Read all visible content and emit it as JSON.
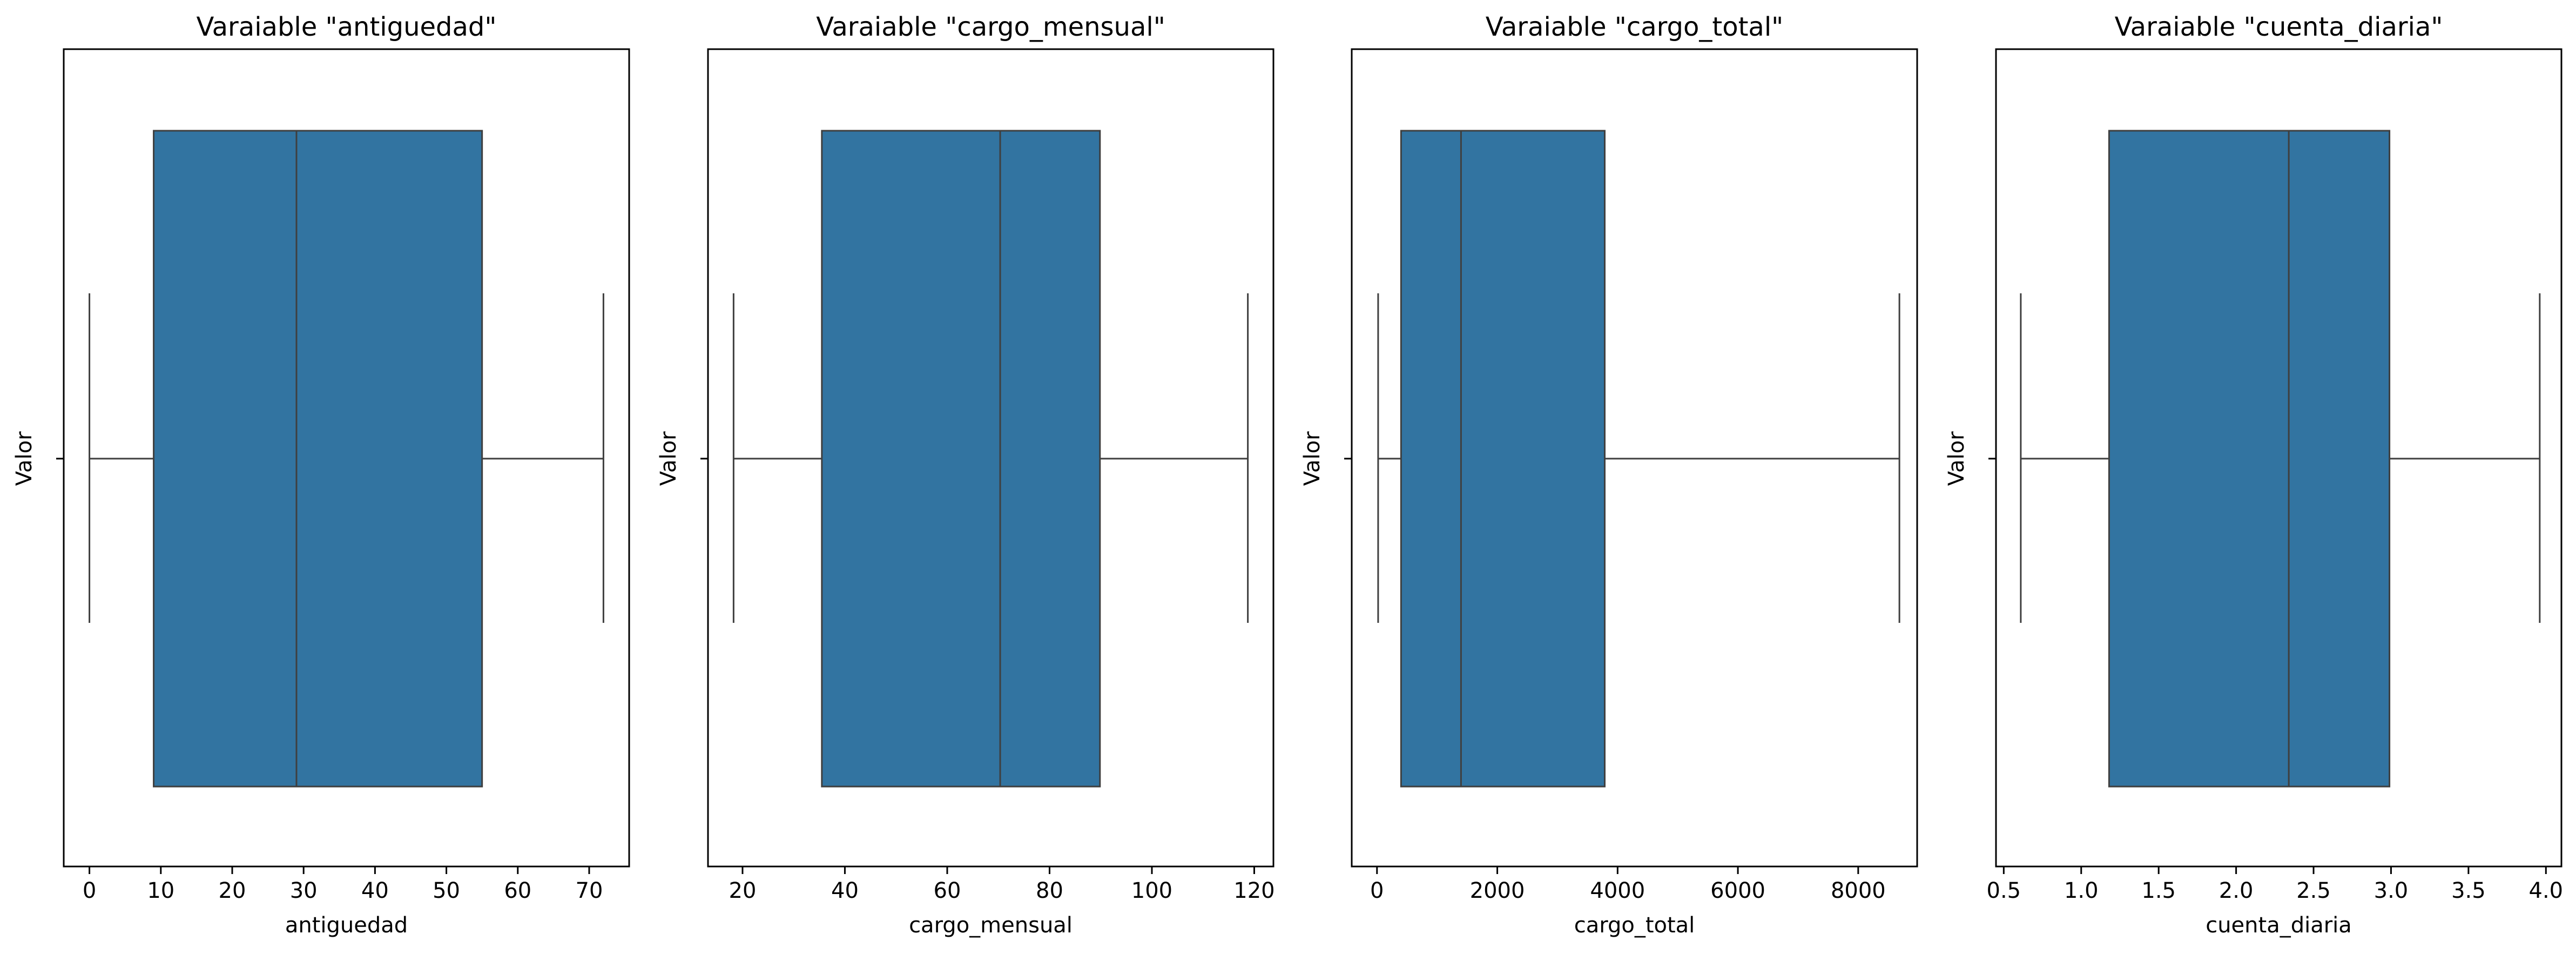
{
  "chart_data": [
    {
      "type": "boxplot",
      "title": "Varaiable \"antiguedad\"",
      "xlabel": "antiguedad",
      "ylabel": "Valor",
      "xlim": [
        -3.6,
        75.6
      ],
      "xticks": [
        0,
        10,
        20,
        30,
        40,
        50,
        60,
        70
      ],
      "tick_labels": [
        "0",
        "10",
        "20",
        "30",
        "40",
        "50",
        "60",
        "70"
      ],
      "stats": {
        "whisker_low": 0,
        "q1": 9,
        "median": 29,
        "q3": 55,
        "whisker_high": 72
      },
      "box_color": "#3274a1",
      "grid": false
    },
    {
      "type": "boxplot",
      "title": "Varaiable \"cargo_mensual\"",
      "xlabel": "cargo_mensual",
      "ylabel": "Valor",
      "xlim": [
        13.25,
        123.75
      ],
      "xticks": [
        20,
        40,
        60,
        80,
        100,
        120
      ],
      "tick_labels": [
        "20",
        "40",
        "60",
        "80",
        "100",
        "120"
      ],
      "stats": {
        "whisker_low": 18.25,
        "q1": 35.5,
        "median": 70.35,
        "q3": 89.85,
        "whisker_high": 118.75
      },
      "box_color": "#3274a1",
      "grid": false
    },
    {
      "type": "boxplot",
      "title": "Varaiable \"cargo_total\"",
      "xlabel": "cargo_total",
      "ylabel": "Valor",
      "xlim": [
        -420,
        8980
      ],
      "xticks": [
        0,
        2000,
        4000,
        6000,
        8000
      ],
      "tick_labels": [
        "0",
        "2000",
        "4000",
        "6000",
        "8000"
      ],
      "stats": {
        "whisker_low": 19,
        "q1": 400,
        "median": 1397,
        "q3": 3786,
        "whisker_high": 8685
      },
      "box_color": "#3274a1",
      "grid": false
    },
    {
      "type": "boxplot",
      "title": "Varaiable \"cuenta_diaria\"",
      "xlabel": "cuenta_diaria",
      "ylabel": "Valor",
      "xlim": [
        0.45,
        4.1
      ],
      "xticks": [
        0.5,
        1.0,
        1.5,
        2.0,
        2.5,
        3.0,
        3.5,
        4.0
      ],
      "tick_labels": [
        "0.5",
        "1.0",
        "1.5",
        "2.0",
        "2.5",
        "3.0",
        "3.5",
        "4.0"
      ],
      "stats": {
        "whisker_low": 0.61,
        "q1": 1.18,
        "median": 2.34,
        "q3": 2.99,
        "whisker_high": 3.96
      },
      "box_color": "#3274a1",
      "grid": false
    }
  ]
}
